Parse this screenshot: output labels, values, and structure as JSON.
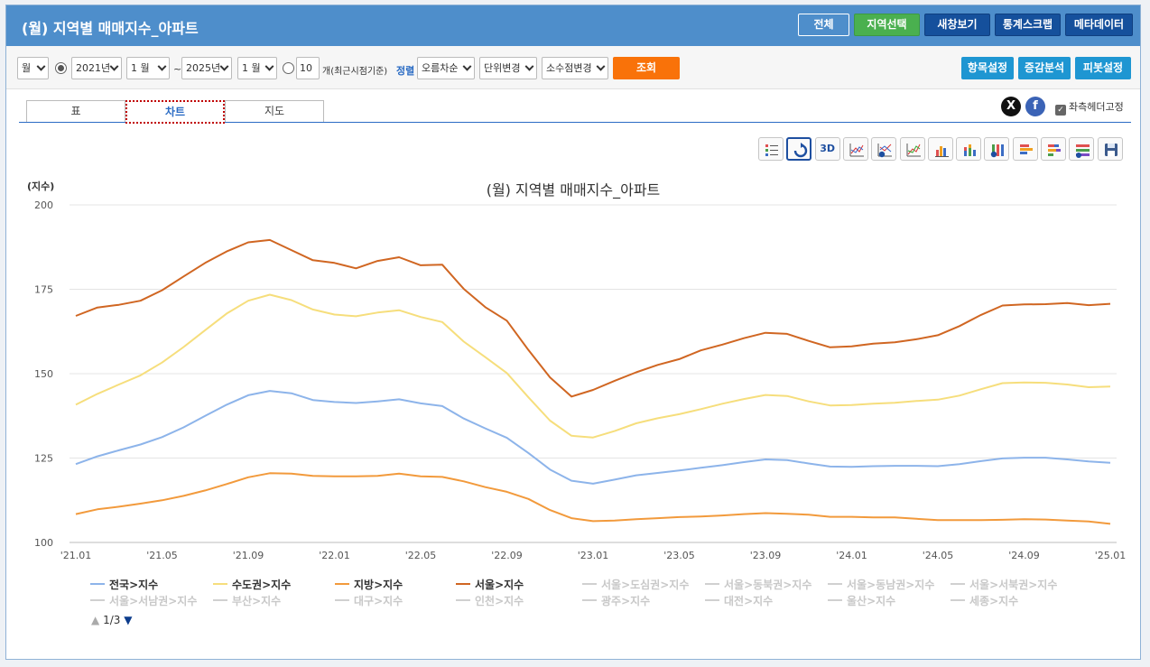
{
  "header": {
    "title": "(월) 지역별 매매지수_아파트",
    "buttons": [
      "전체",
      "지역선택",
      "새창보기",
      "통계스크랩",
      "메타데이터"
    ]
  },
  "toolbar": {
    "period_unit": "월",
    "start_year": "2021년",
    "start_month": "1 월",
    "range_sep": "~",
    "end_year": "2025년",
    "end_month": "1 월",
    "recent_count": "10",
    "recent_label": "개(최근시점기준)",
    "sort_label": "정렬",
    "sort_value": "오름차순",
    "unit_value": "단위변경",
    "decimal_value": "소수점변경",
    "search_label": "조회",
    "right_buttons": [
      "항목설정",
      "증감분석",
      "피봇설정"
    ]
  },
  "tabs": [
    "표",
    "차트",
    "지도"
  ],
  "social": {
    "x": "X",
    "fb": "f",
    "fix_header": "좌측헤더고정"
  },
  "chart_tools": [
    "list-icon",
    "refresh-icon",
    "3d-icon",
    "line-chart-icon",
    "dollar-line-icon",
    "area-line-icon",
    "bar-chart-icon",
    "stacked-bar-icon",
    "pct-bar-icon",
    "hbar-icon",
    "stacked-hbar-icon",
    "pct-hbar-icon",
    "save-icon"
  ],
  "chart_tool_3d": "3D",
  "pager": {
    "up": "▲",
    "text": "1/3",
    "down": "▼"
  },
  "colors": {
    "전국": "#8db4ea",
    "수도권": "#f6de7c",
    "지방": "#f29a3c",
    "서울": "#d06622"
  },
  "chart_data": {
    "type": "line",
    "title": "(월) 지역별 매매지수_아파트",
    "ylabel": "(지수)",
    "ylim": [
      100,
      200
    ],
    "yticks": [
      100,
      125,
      150,
      175,
      200
    ],
    "xtick_labels": [
      "'21.01",
      "'21.05",
      "'21.09",
      "'22.01",
      "'22.05",
      "'22.09",
      "'23.01",
      "'23.05",
      "'23.09",
      "'24.01",
      "'24.05",
      "'24.09",
      "'25.01"
    ],
    "x": [
      "'21.01",
      "'21.02",
      "'21.03",
      "'21.04",
      "'21.05",
      "'21.06",
      "'21.07",
      "'21.08",
      "'21.09",
      "'21.10",
      "'21.11",
      "'21.12",
      "'22.01",
      "'22.02",
      "'22.03",
      "'22.04",
      "'22.05",
      "'22.06",
      "'22.07",
      "'22.08",
      "'22.09",
      "'22.10",
      "'22.11",
      "'22.12",
      "'23.01",
      "'23.02",
      "'23.03",
      "'23.04",
      "'23.05",
      "'23.06",
      "'23.07",
      "'23.08",
      "'23.09",
      "'23.10",
      "'23.11",
      "'23.12",
      "'24.01",
      "'24.02",
      "'24.03",
      "'24.04",
      "'24.05",
      "'24.06",
      "'24.07",
      "'24.08",
      "'24.09",
      "'24.10",
      "'24.11",
      "'24.12",
      "'25.01"
    ],
    "grid": true,
    "legend_position": "bottom",
    "series": [
      {
        "name": "전국>지수",
        "visible": true,
        "color": "#8db4ea",
        "values": [
          123.2,
          125.5,
          127.3,
          129.0,
          131.2,
          134.1,
          137.5,
          140.8,
          143.6,
          144.9,
          144.2,
          142.2,
          141.6,
          141.3,
          141.8,
          142.4,
          141.2,
          140.4,
          136.7,
          133.8,
          131.0,
          126.5,
          121.6,
          118.3,
          117.4,
          118.6,
          119.9,
          120.6,
          121.3,
          122.1,
          122.9,
          123.8,
          124.6,
          124.4,
          123.4,
          122.5,
          122.4,
          122.6,
          122.7,
          122.7,
          122.6,
          123.2,
          124.1,
          124.9,
          125.1,
          125.1,
          124.6,
          124.0,
          123.6
        ]
      },
      {
        "name": "수도권>지수",
        "visible": true,
        "color": "#f6de7c",
        "values": [
          140.8,
          144.0,
          146.8,
          149.5,
          153.3,
          157.9,
          162.9,
          167.8,
          171.6,
          173.4,
          171.8,
          169.0,
          167.5,
          167.0,
          168.1,
          168.8,
          166.8,
          165.3,
          159.5,
          154.9,
          150.2,
          143.0,
          136.1,
          131.6,
          131.1,
          133.0,
          135.3,
          136.8,
          138.0,
          139.5,
          141.1,
          142.5,
          143.7,
          143.4,
          141.8,
          140.6,
          140.7,
          141.1,
          141.4,
          141.9,
          142.3,
          143.5,
          145.4,
          147.2,
          147.4,
          147.3,
          146.8,
          146.0,
          146.2
        ]
      },
      {
        "name": "지방>지수",
        "visible": true,
        "color": "#f29a3c",
        "values": [
          108.4,
          109.8,
          110.6,
          111.5,
          112.5,
          113.8,
          115.4,
          117.3,
          119.3,
          120.5,
          120.4,
          119.7,
          119.6,
          119.6,
          119.7,
          120.4,
          119.6,
          119.4,
          118.1,
          116.4,
          115.0,
          112.9,
          109.6,
          107.2,
          106.3,
          106.5,
          106.9,
          107.2,
          107.5,
          107.7,
          108.0,
          108.4,
          108.7,
          108.5,
          108.2,
          107.6,
          107.6,
          107.4,
          107.4,
          107.0,
          106.6,
          106.6,
          106.6,
          106.7,
          106.9,
          106.8,
          106.5,
          106.2,
          105.5
        ]
      },
      {
        "name": "서울>지수",
        "visible": true,
        "color": "#d06622",
        "values": [
          167.1,
          169.6,
          170.4,
          171.6,
          174.7,
          178.8,
          182.8,
          186.2,
          188.9,
          189.6,
          186.6,
          183.6,
          182.8,
          181.2,
          183.4,
          184.5,
          182.1,
          182.3,
          175.1,
          169.7,
          165.7,
          157.0,
          148.9,
          143.2,
          145.2,
          147.9,
          150.4,
          152.6,
          154.3,
          156.9,
          158.6,
          160.5,
          162.1,
          161.8,
          159.7,
          157.8,
          158.1,
          158.9,
          159.3,
          160.2,
          161.4,
          164.1,
          167.4,
          170.2,
          170.5,
          170.6,
          170.9,
          170.3,
          170.7
        ]
      },
      {
        "name": "서울>도심권>지수",
        "visible": false
      },
      {
        "name": "서울>동북권>지수",
        "visible": false
      },
      {
        "name": "서울>동남권>지수",
        "visible": false
      },
      {
        "name": "서울>서북권>지수",
        "visible": false
      },
      {
        "name": "서울>서남권>지수",
        "visible": false
      },
      {
        "name": "부산>지수",
        "visible": false
      },
      {
        "name": "대구>지수",
        "visible": false
      },
      {
        "name": "인천>지수",
        "visible": false
      },
      {
        "name": "광주>지수",
        "visible": false
      },
      {
        "name": "대전>지수",
        "visible": false
      },
      {
        "name": "울산>지수",
        "visible": false
      },
      {
        "name": "세종>지수",
        "visible": false
      }
    ]
  }
}
